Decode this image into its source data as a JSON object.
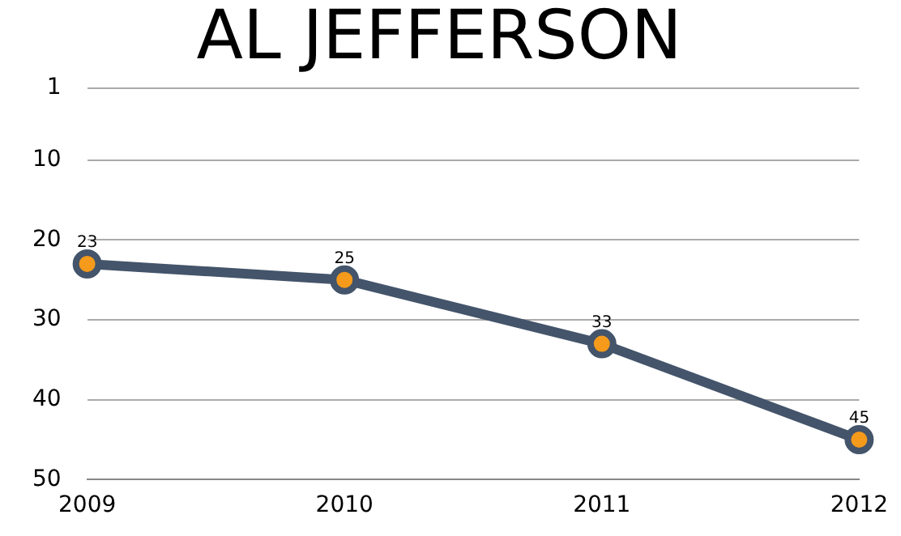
{
  "chart_data": {
    "type": "line",
    "title": "AL JEFFERSON",
    "categories": [
      "2009",
      "2010",
      "2011",
      "2012"
    ],
    "series": [
      {
        "color": "#44546a",
        "values": [
          23,
          25,
          33,
          45
        ]
      }
    ],
    "ylim": [
      50,
      1
    ],
    "yticks": [
      1,
      10,
      20,
      30,
      40,
      50
    ],
    "grid": "y",
    "legend": false,
    "marker": "circle",
    "line_style": "solid",
    "data_labels": true
  }
}
